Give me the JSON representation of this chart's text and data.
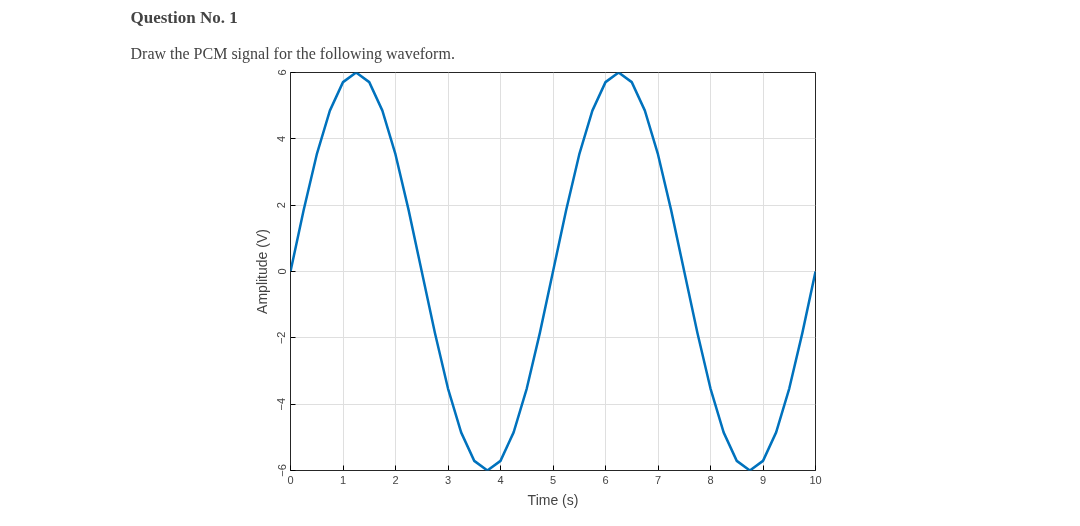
{
  "chart_data": {
    "type": "line",
    "title": "Question No. 1",
    "subtitle": "Draw the PCM signal for the following waveform.",
    "xlabel": "Time (s)",
    "ylabel": "Amplitude (V)",
    "x": [
      0,
      0.25,
      0.5,
      0.75,
      1,
      1.25,
      1.5,
      1.75,
      2,
      2.25,
      2.5,
      2.75,
      3,
      3.25,
      3.5,
      3.75,
      4,
      4.25,
      4.5,
      4.75,
      5,
      5.25,
      5.5,
      5.75,
      6,
      6.25,
      6.5,
      6.75,
      7,
      7.25,
      7.5,
      7.75,
      8,
      8.25,
      8.5,
      8.75,
      9,
      9.25,
      9.5,
      9.75,
      10
    ],
    "series": [
      {
        "color": "#0072bd",
        "values": [
          0,
          1.85,
          3.53,
          4.85,
          5.71,
          6,
          5.71,
          4.85,
          3.53,
          1.85,
          0,
          -1.85,
          -3.53,
          -4.85,
          -5.71,
          -6,
          -5.71,
          -4.85,
          -3.53,
          -1.85,
          0,
          1.85,
          3.53,
          4.85,
          5.71,
          6,
          5.71,
          4.85,
          3.53,
          1.85,
          0,
          -1.85,
          -3.53,
          -4.85,
          -5.71,
          -6,
          -5.71,
          -4.85,
          -3.53,
          -1.85,
          0
        ]
      }
    ],
    "xlim": [
      0,
      10
    ],
    "xticks": [
      0,
      1,
      2,
      3,
      4,
      5,
      6,
      7,
      8,
      9,
      10
    ],
    "ylim": [
      -6,
      6
    ],
    "yticks": [
      -6,
      -4,
      -2,
      0,
      2,
      4,
      6
    ],
    "grid": true,
    "marker": "none",
    "line_style": "solid"
  }
}
